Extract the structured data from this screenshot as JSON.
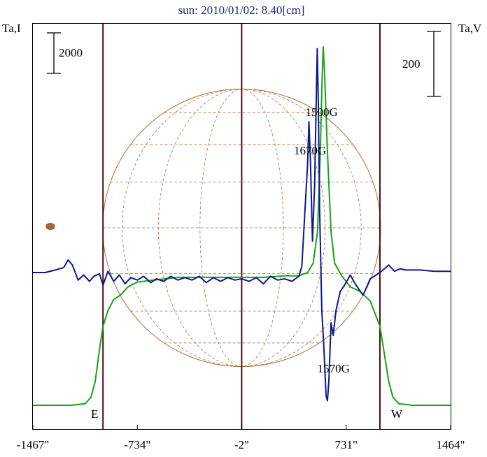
{
  "chart_data": {
    "type": "line",
    "title": "sun: 2010/01/02: 8.40[cm]",
    "left_axis_label": "Ta,I",
    "right_axis_label": "Ta,V",
    "left_scale_label": "2000",
    "right_scale_label": "200",
    "x_unit": "arcsec",
    "x_ticks": [
      {
        "value": -1467,
        "label": "-1467\""
      },
      {
        "value": -734,
        "label": "-734\""
      },
      {
        "value": -2,
        "label": "-2\""
      },
      {
        "value": 731,
        "label": "731\""
      },
      {
        "value": 1464,
        "label": "1464\""
      }
    ],
    "xlim": [
      -1467,
      1464
    ],
    "limb_markers": [
      {
        "label": "E",
        "value": -975
      },
      {
        "label": "W",
        "value": 968
      }
    ],
    "center_marker": -2,
    "solar_disk": {
      "center_x": -2,
      "radius": 975,
      "color": "#b06a3a"
    },
    "annotations": [
      {
        "text": "1500G",
        "x": 559,
        "near_series": "Stokes V"
      },
      {
        "text": "1670G",
        "x": 478,
        "near_series": "Stokes V"
      },
      {
        "text": "1570G",
        "x": 643,
        "near_series": "Stokes V"
      }
    ],
    "series": [
      {
        "color": "#1aa21a",
        "y_scale": "left",
        "points": [
          [
            -1467,
            0.0
          ],
          [
            -1200,
            0.0
          ],
          [
            -1100,
            0.01
          ],
          [
            -1060,
            0.05
          ],
          [
            -1030,
            0.15
          ],
          [
            -1000,
            0.35
          ],
          [
            -975,
            0.5
          ],
          [
            -940,
            0.6
          ],
          [
            -900,
            0.67
          ],
          [
            -850,
            0.7
          ],
          [
            -800,
            0.75
          ],
          [
            -734,
            0.78
          ],
          [
            -650,
            0.79
          ],
          [
            -550,
            0.8
          ],
          [
            -450,
            0.81
          ],
          [
            -300,
            0.81
          ],
          [
            -150,
            0.81
          ],
          [
            -2,
            0.81
          ],
          [
            150,
            0.81
          ],
          [
            300,
            0.82
          ],
          [
            400,
            0.82
          ],
          [
            460,
            0.84
          ],
          [
            500,
            0.9
          ],
          [
            530,
            1.1
          ],
          [
            550,
            1.6
          ],
          [
            560,
            2.0
          ],
          [
            570,
            2.27
          ],
          [
            580,
            2.1
          ],
          [
            600,
            1.6
          ],
          [
            625,
            1.1
          ],
          [
            650,
            0.9
          ],
          [
            700,
            0.82
          ],
          [
            760,
            0.75
          ],
          [
            830,
            0.72
          ],
          [
            900,
            0.66
          ],
          [
            968,
            0.5
          ],
          [
            1000,
            0.32
          ],
          [
            1030,
            0.15
          ],
          [
            1060,
            0.05
          ],
          [
            1100,
            0.01
          ],
          [
            1200,
            0.0
          ],
          [
            1464,
            0.0
          ]
        ]
      },
      {
        "color": "#0a1a8c",
        "y_scale": "right",
        "points": [
          [
            -1467,
            0.0
          ],
          [
            -1380,
            0.0
          ],
          [
            -1310,
            0.02
          ],
          [
            -1250,
            0.04
          ],
          [
            -1220,
            0.1
          ],
          [
            -1190,
            0.06
          ],
          [
            -1150,
            -0.06
          ],
          [
            -1110,
            -0.02
          ],
          [
            -1070,
            -0.07
          ],
          [
            -1040,
            -0.03
          ],
          [
            -1000,
            -0.01
          ],
          [
            -975,
            -0.1
          ],
          [
            -940,
            0.01
          ],
          [
            -900,
            -0.07
          ],
          [
            -860,
            -0.02
          ],
          [
            -820,
            -0.09
          ],
          [
            -780,
            -0.04
          ],
          [
            -734,
            -0.06
          ],
          [
            -690,
            -0.03
          ],
          [
            -640,
            -0.08
          ],
          [
            -600,
            -0.05
          ],
          [
            -550,
            -0.07
          ],
          [
            -500,
            -0.03
          ],
          [
            -450,
            -0.06
          ],
          [
            -400,
            -0.04
          ],
          [
            -350,
            -0.06
          ],
          [
            -300,
            -0.03
          ],
          [
            -250,
            -0.08
          ],
          [
            -200,
            -0.04
          ],
          [
            -150,
            -0.07
          ],
          [
            -100,
            -0.04
          ],
          [
            -50,
            -0.06
          ],
          [
            -2,
            -0.05
          ],
          [
            50,
            -0.07
          ],
          [
            100,
            -0.04
          ],
          [
            150,
            -0.09
          ],
          [
            200,
            -0.03
          ],
          [
            250,
            -0.06
          ],
          [
            300,
            -0.05
          ],
          [
            350,
            -0.07
          ],
          [
            400,
            -0.03
          ],
          [
            420,
            0.05
          ],
          [
            445,
            0.55
          ],
          [
            460,
            0.85
          ],
          [
            470,
            1.2
          ],
          [
            480,
            0.9
          ],
          [
            495,
            0.25
          ],
          [
            510,
            0.7
          ],
          [
            520,
            1.3
          ],
          [
            528,
            1.78
          ],
          [
            535,
            1.4
          ],
          [
            545,
            0.5
          ],
          [
            560,
            -0.3
          ],
          [
            575,
            -0.6
          ],
          [
            590,
            -0.98
          ],
          [
            600,
            -1.02
          ],
          [
            610,
            -0.85
          ],
          [
            625,
            -0.4
          ],
          [
            640,
            -0.5
          ],
          [
            660,
            -0.3
          ],
          [
            690,
            -0.15
          ],
          [
            720,
            -0.1
          ],
          [
            760,
            -0.02
          ],
          [
            800,
            -0.1
          ],
          [
            850,
            -0.18
          ],
          [
            900,
            -0.05
          ],
          [
            968,
            0.0
          ],
          [
            1000,
            0.03
          ],
          [
            1030,
            0.06
          ],
          [
            1070,
            0.01
          ],
          [
            1110,
            0.03
          ],
          [
            1150,
            0.02
          ],
          [
            1250,
            0.02
          ],
          [
            1350,
            0.01
          ],
          [
            1464,
            0.01
          ]
        ]
      }
    ]
  }
}
